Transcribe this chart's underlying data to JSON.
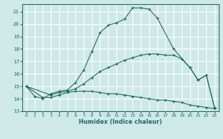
{
  "xlabel": "Humidex (Indice chaleur)",
  "background_color": "#cfe8e8",
  "grid_color": "#ffffff",
  "line_color": "#1a6b5a",
  "curve1_x": [
    0,
    1,
    2,
    3,
    4,
    5,
    6,
    7,
    8,
    9,
    10,
    11,
    12,
    13,
    14,
    15,
    16,
    18,
    20,
    21,
    22,
    23
  ],
  "curve1_y": [
    15.0,
    14.2,
    14.0,
    14.4,
    14.6,
    14.7,
    15.3,
    16.3,
    17.8,
    19.3,
    19.9,
    20.1,
    20.4,
    21.3,
    21.3,
    21.2,
    20.5,
    18.0,
    16.5,
    15.5,
    15.9,
    13.3
  ],
  "curve2_x": [
    0,
    3,
    4,
    5,
    6,
    7,
    8,
    9,
    10,
    11,
    12,
    13,
    14,
    15,
    16,
    17,
    18,
    19,
    20,
    21,
    22,
    23
  ],
  "curve2_y": [
    15.0,
    14.3,
    14.5,
    14.6,
    14.8,
    15.2,
    15.7,
    16.2,
    16.5,
    16.8,
    17.1,
    17.3,
    17.5,
    17.6,
    17.6,
    17.5,
    17.5,
    17.2,
    16.5,
    15.5,
    15.9,
    13.3
  ],
  "curve3_x": [
    0,
    2,
    3,
    4,
    5,
    6,
    7,
    8,
    9,
    10,
    11,
    12,
    13,
    14,
    15,
    16,
    17,
    18,
    19,
    20,
    21,
    22,
    23
  ],
  "curve3_y": [
    15.0,
    14.1,
    14.1,
    14.3,
    14.5,
    14.6,
    14.6,
    14.6,
    14.5,
    14.4,
    14.4,
    14.3,
    14.2,
    14.1,
    14.0,
    13.9,
    13.9,
    13.8,
    13.7,
    13.5,
    13.4,
    13.3,
    13.2
  ],
  "xlim": [
    -0.5,
    23.5
  ],
  "ylim": [
    13.0,
    21.6
  ],
  "yticks": [
    13,
    14,
    15,
    16,
    17,
    18,
    19,
    20,
    21
  ],
  "xticks": [
    0,
    1,
    2,
    3,
    4,
    5,
    6,
    7,
    8,
    9,
    10,
    11,
    12,
    13,
    14,
    15,
    16,
    17,
    18,
    19,
    20,
    21,
    22,
    23
  ]
}
